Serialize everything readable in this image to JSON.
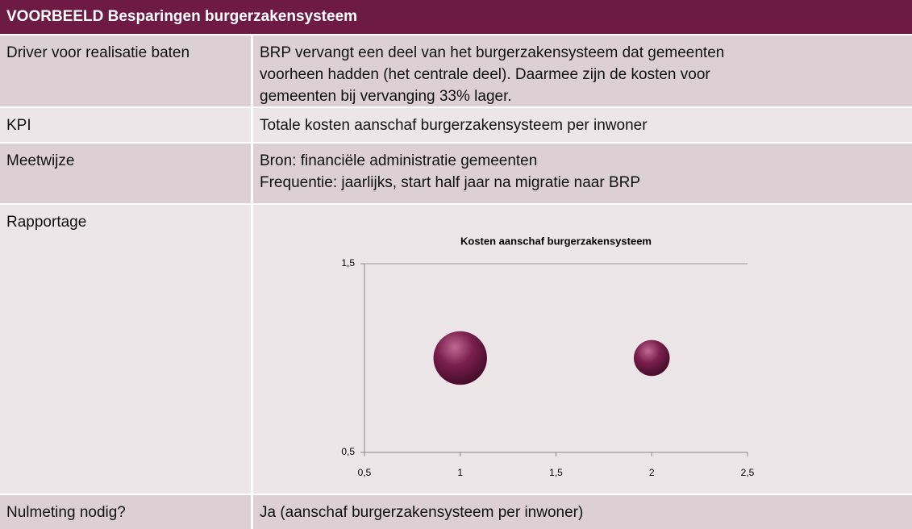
{
  "title": "VOORBEELD Besparingen burgerzakensysteem",
  "rows": [
    {
      "label": "Driver voor realisatie baten",
      "lines": [
        "BRP vervangt een deel van het burgerzakensysteem dat gemeenten",
        "voorheen hadden (het centrale deel). Daarmee zijn de kosten voor",
        "gemeenten bij vervanging 33% lager."
      ]
    },
    {
      "label": "KPI",
      "lines": [
        "Totale kosten aanschaf burgerzakensysteem per inwoner"
      ]
    },
    {
      "label": "Meetwijze",
      "lines": [
        "Bron: financiële administratie gemeenten",
        "Frequentie: jaarlijks, start half jaar na migratie naar BRP"
      ]
    },
    {
      "label": "Rapportage",
      "lines": []
    },
    {
      "label": "Nulmeting nodig?",
      "lines": [
        "Ja (aanschaf burgerzakensysteem per inwoner)"
      ]
    }
  ],
  "chart_data": {
    "type": "bubble",
    "title": "Kosten aanschaf burgerzakensysteem",
    "x": [
      1,
      2
    ],
    "series": [
      {
        "color": "#7a1f4d",
        "values": [
          1,
          1
        ],
        "sizes": [
          1,
          0.67
        ]
      }
    ],
    "xlim": [
      0.5,
      2.5
    ],
    "ylim": [
      0.5,
      1.5
    ],
    "xticks": [
      {
        "value": 0.5,
        "label": "0,5"
      },
      1,
      {
        "value": 1.5,
        "label": "1,5"
      },
      2,
      {
        "value": 2.5,
        "label": "2,5"
      }
    ],
    "yticks": [
      {
        "value": 0.5,
        "label": "0,5"
      },
      {
        "value": 1.5,
        "label": "1,5"
      }
    ],
    "grid": true
  }
}
